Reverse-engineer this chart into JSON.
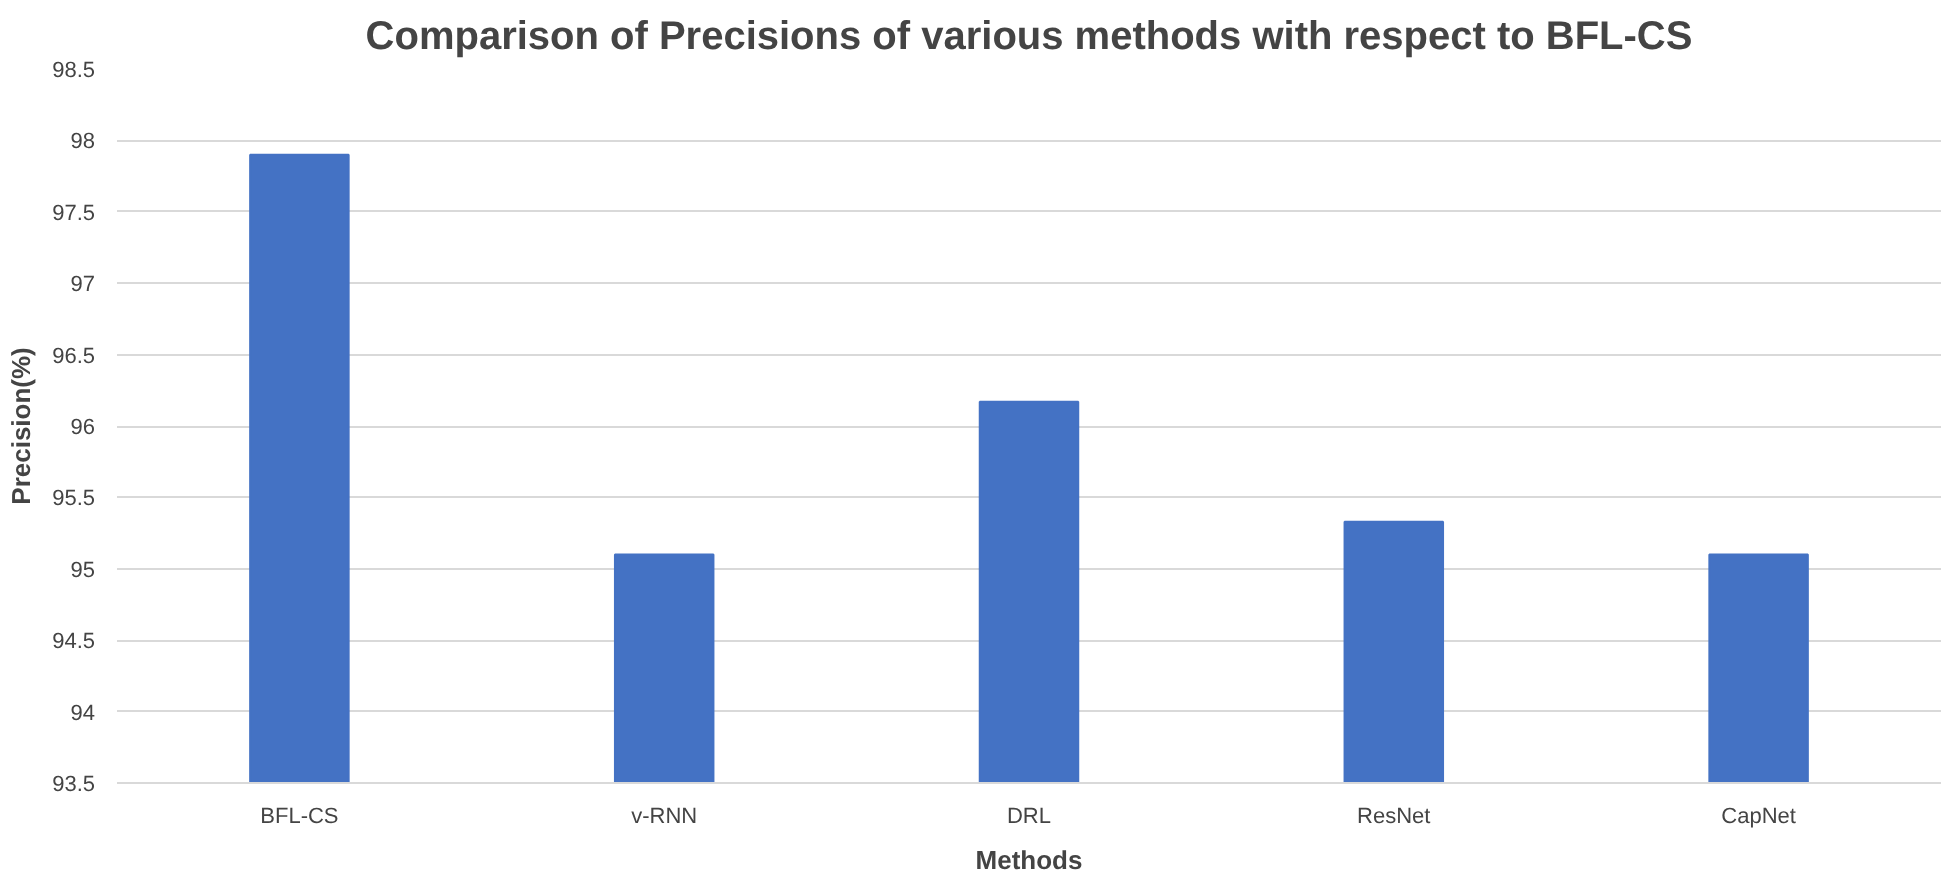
{
  "chart_data": {
    "type": "bar",
    "title": "Comparison of Precisions of various methods with respect to BFL-CS",
    "xlabel": "Methods",
    "ylabel": "Precision(%)",
    "categories": [
      "BFL-CS",
      "v-RNN",
      "DRL",
      "ResNet",
      "CapNet"
    ],
    "values": [
      97.9,
      95.1,
      96.17,
      95.33,
      95.1
    ],
    "color": "#4472c4",
    "ylim": [
      93.5,
      98.5
    ],
    "yticks": [
      93.5,
      94,
      94.5,
      95,
      95.5,
      96,
      96.5,
      97,
      97.5,
      98,
      98.5
    ],
    "grid": "y"
  }
}
